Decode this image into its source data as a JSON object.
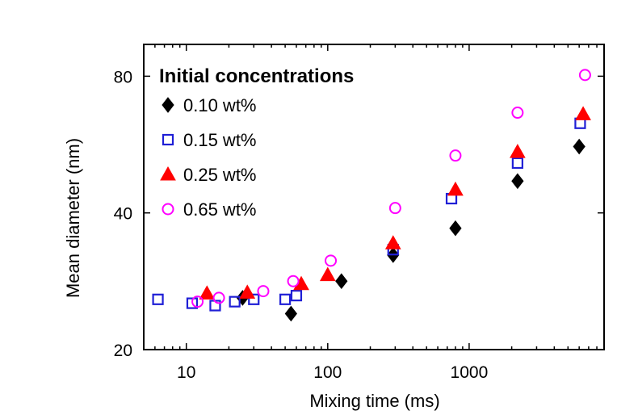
{
  "chart_data": {
    "type": "scatter",
    "xlabel": "Mixing time (ms)",
    "ylabel": "Mean diameter (nm)",
    "x_scale": "log",
    "y_scale": "log",
    "xlim": [
      5,
      9000
    ],
    "ylim": [
      20,
      94
    ],
    "x_ticks": [
      {
        "value": 10,
        "label": "10"
      },
      {
        "value": 100,
        "label": "100"
      },
      {
        "value": 1000,
        "label": "1000"
      }
    ],
    "y_ticks": [
      {
        "value": 20,
        "label": "20"
      },
      {
        "value": 40,
        "label": "40"
      },
      {
        "value": 80,
        "label": "80"
      }
    ],
    "grid": false,
    "legend": {
      "title": "Initial concentrations",
      "position": "top-left"
    },
    "series": [
      {
        "name": "0.10 wt%",
        "marker": "diamond-filled",
        "color": "#000000",
        "points": [
          [
            25,
            26.0
          ],
          [
            55,
            24.0
          ],
          [
            125,
            28.3
          ],
          [
            290,
            32.3
          ],
          [
            800,
            37.0
          ],
          [
            2200,
            47.0
          ],
          [
            6000,
            56.0
          ]
        ]
      },
      {
        "name": "0.15 wt%",
        "marker": "square-open",
        "color": "#1f1fd6",
        "points": [
          [
            6.3,
            25.8
          ],
          [
            11,
            25.3
          ],
          [
            16,
            25.0
          ],
          [
            22,
            25.5
          ],
          [
            30,
            25.8
          ],
          [
            50,
            25.8
          ],
          [
            60,
            26.3
          ],
          [
            290,
            33.2
          ],
          [
            750,
            43.0
          ],
          [
            2200,
            51.5
          ],
          [
            6100,
            63.0
          ]
        ]
      },
      {
        "name": "0.25 wt%",
        "marker": "triangle-filled",
        "color": "#ff0000",
        "points": [
          [
            14,
            26.6
          ],
          [
            27,
            26.7
          ],
          [
            65,
            27.9
          ],
          [
            100,
            29.2
          ],
          [
            290,
            34.3
          ],
          [
            800,
            45.0
          ],
          [
            2200,
            54.5
          ],
          [
            6400,
            66.0
          ]
        ]
      },
      {
        "name": "0.65 wt%",
        "marker": "circle-open",
        "color": "#ff00ff",
        "points": [
          [
            12,
            25.5
          ],
          [
            17,
            26.0
          ],
          [
            35,
            26.9
          ],
          [
            57,
            28.3
          ],
          [
            105,
            31.4
          ],
          [
            300,
            41.0
          ],
          [
            800,
            53.5
          ],
          [
            2200,
            66.5
          ],
          [
            6600,
            80.5
          ]
        ]
      }
    ]
  }
}
